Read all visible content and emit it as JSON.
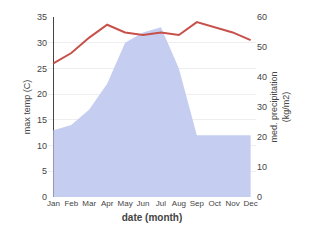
{
  "chart_data": {
    "type": "line",
    "categories": [
      "Jan",
      "Feb",
      "Mar",
      "Apr",
      "May",
      "Jun",
      "Jul",
      "Aug",
      "Sep",
      "Oct",
      "Nov",
      "Dec"
    ],
    "series": [
      {
        "type": "area",
        "color": "#c5cef0",
        "values": [
          13,
          14,
          17,
          22,
          30,
          32,
          33,
          25,
          12,
          12,
          12,
          12
        ]
      },
      {
        "type": "line",
        "color": "#c8504a",
        "values": [
          26,
          28,
          31,
          33.5,
          32,
          31.5,
          32,
          31.5,
          34,
          33,
          32,
          30.5
        ]
      }
    ],
    "xlabel": "date (month)",
    "ylabel": "max temp (C)",
    "y2label": "med. precipitation\n(kg/m2)",
    "ylim": [
      0,
      35
    ],
    "yticks": [
      0,
      5,
      10,
      15,
      20,
      25,
      30,
      35
    ],
    "y2lim": [
      0,
      60
    ],
    "y2ticks": [
      0,
      10,
      20,
      30,
      40,
      50,
      60
    ],
    "grid": true
  }
}
